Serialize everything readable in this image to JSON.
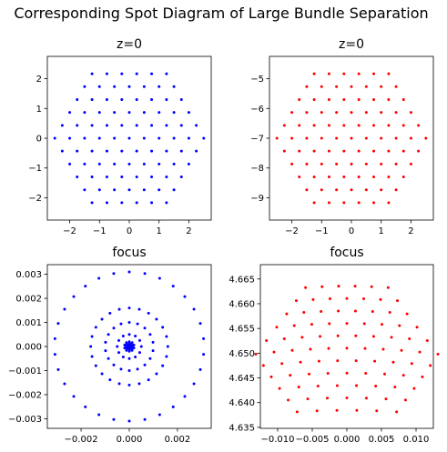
{
  "title": "Corresponding Spot Diagram of Large Bundle Separation",
  "chart_data": [
    {
      "type": "scatter",
      "title": "z=0",
      "color": "#0000ff",
      "xlim": [
        -2.75,
        2.75
      ],
      "ylim": [
        -2.75,
        2.75
      ],
      "xticks": [
        -2,
        -1,
        0,
        1,
        2
      ],
      "xtick_labels": [
        "−2",
        "−1",
        "0",
        "1",
        "2"
      ],
      "yticks": [
        -2,
        -1,
        0,
        1,
        2
      ],
      "ytick_labels": [
        "−2",
        "−1",
        "0",
        "1",
        "2"
      ],
      "pattern": {
        "kind": "hex",
        "x0": 0,
        "y0": 0,
        "spacing": 0.5,
        "radius": 2.5
      }
    },
    {
      "type": "scatter",
      "title": "z=0",
      "color": "#ff0000",
      "xlim": [
        -2.75,
        2.75
      ],
      "ylim": [
        -9.75,
        -4.25
      ],
      "xticks": [
        -2,
        -1,
        0,
        1,
        2
      ],
      "xtick_labels": [
        "−2",
        "−1",
        "0",
        "1",
        "2"
      ],
      "yticks": [
        -9,
        -8,
        -7,
        -6,
        -5
      ],
      "ytick_labels": [
        "−9",
        "−8",
        "−7",
        "−6",
        "−5"
      ],
      "pattern": {
        "kind": "hex",
        "x0": 0,
        "y0": -7,
        "spacing": 0.5,
        "radius": 2.5
      }
    },
    {
      "type": "scatter",
      "title": "focus",
      "color": "#0000ff",
      "xlim": [
        -0.0034,
        0.0034
      ],
      "ylim": [
        -0.0034,
        0.0034
      ],
      "xticks": [
        -0.002,
        0,
        0.002
      ],
      "xtick_labels": [
        "−0.002",
        "0.000",
        "0.002"
      ],
      "yticks": [
        -0.003,
        -0.002,
        -0.001,
        0,
        0.001,
        0.002,
        0.003
      ],
      "ytick_labels": [
        "−0.003",
        "−0.002",
        "−0.001",
        "0.000",
        "0.001",
        "0.002",
        "0.003"
      ],
      "pattern": {
        "kind": "rings",
        "x0": 0,
        "y0": 0,
        "rings": [
          {
            "r": 0.0031,
            "n": 30
          },
          {
            "r": 0.0016,
            "n": 24
          },
          {
            "r": 0.001,
            "n": 18
          },
          {
            "r": 0.0005,
            "n": 12
          },
          {
            "r": 0.0002,
            "n": 10
          },
          {
            "r": 0.00012,
            "n": 8
          },
          {
            "r": 6e-05,
            "n": 6
          },
          {
            "r": 0,
            "n": 1
          }
        ]
      }
    },
    {
      "type": "scatter",
      "title": "focus",
      "color": "#ff0000",
      "xlim": [
        -0.0125,
        0.0125
      ],
      "ylim": [
        4.6348,
        4.6679
      ],
      "xticks": [
        -0.01,
        -0.005,
        0,
        0.005,
        0.01
      ],
      "xtick_labels": [
        "−0.010",
        "−0.005",
        "0.000",
        "0.005",
        "0.010"
      ],
      "yticks": [
        4.635,
        4.64,
        4.645,
        4.65,
        4.655,
        4.66,
        4.665
      ],
      "ytick_labels": [
        "4.635",
        "4.640",
        "4.645",
        "4.650",
        "4.655",
        "4.660",
        "4.665"
      ],
      "pattern": {
        "kind": "hex-warped",
        "x0": 0,
        "y0": 4.651,
        "xscale": 0.0047,
        "yscale": 0.0058,
        "curve": 0.0012,
        "spacing": 0.5,
        "radius": 2.5
      }
    }
  ]
}
